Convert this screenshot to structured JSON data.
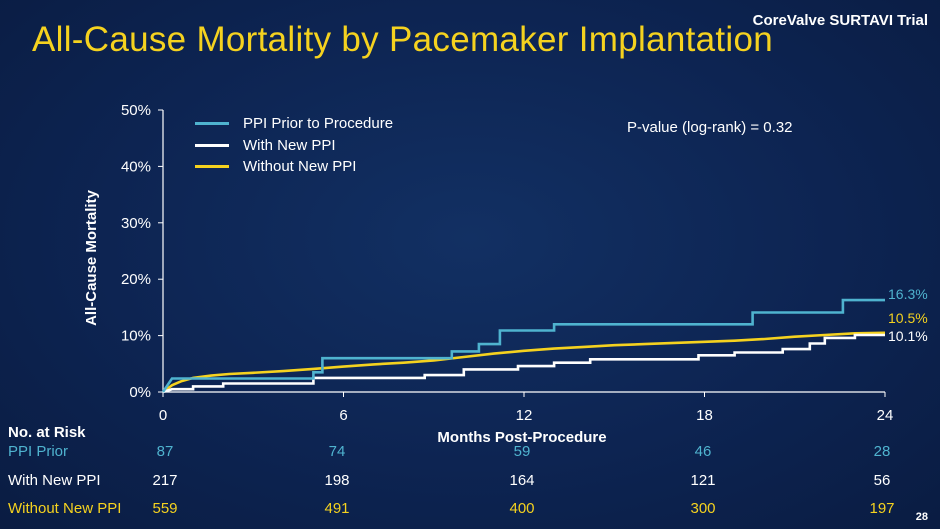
{
  "header": {
    "trial": "CoreValve SURTAVI Trial",
    "title": "All-Cause Mortality by Pacemaker Implantation",
    "page_number": "28"
  },
  "annotation": {
    "pvalue": "P-value (log-rank) = 0.32"
  },
  "colors": {
    "prior": "#4fb3cf",
    "new": "#ffffff",
    "without": "#f5d21f",
    "title": "#f5d21f"
  },
  "chart_data": {
    "type": "line",
    "title": "All-Cause Mortality by Pacemaker Implantation",
    "xlabel": "Months Post-Procedure",
    "ylabel": "All-Cause Mortality",
    "xlim": [
      0,
      24
    ],
    "ylim": [
      0,
      50
    ],
    "x_ticks": [
      "0",
      "6",
      "12",
      "18",
      "24"
    ],
    "y_ticks": [
      "0%",
      "10%",
      "20%",
      "30%",
      "40%",
      "50%"
    ],
    "legend_position": "top-left",
    "series": [
      {
        "name": "PPI Prior to Procedure",
        "key": "prior",
        "end_label": "16.3%",
        "points": [
          [
            0,
            0
          ],
          [
            0.15,
            1.2
          ],
          [
            0.3,
            2.4
          ],
          [
            5,
            2.4
          ],
          [
            5,
            3.5
          ],
          [
            5.3,
            3.5
          ],
          [
            5.3,
            6.0
          ],
          [
            9.6,
            6.0
          ],
          [
            9.6,
            7.2
          ],
          [
            10.5,
            7.2
          ],
          [
            10.5,
            8.5
          ],
          [
            11.2,
            8.5
          ],
          [
            11.2,
            10.9
          ],
          [
            13,
            10.9
          ],
          [
            13,
            12.0
          ],
          [
            19.6,
            12.0
          ],
          [
            19.6,
            14.1
          ],
          [
            22.6,
            14.1
          ],
          [
            22.6,
            16.3
          ],
          [
            24,
            16.3
          ]
        ]
      },
      {
        "name": "With New PPI",
        "key": "new",
        "end_label": "10.1%",
        "points": [
          [
            0,
            0
          ],
          [
            0.3,
            0.5
          ],
          [
            1,
            0.5
          ],
          [
            1,
            1.0
          ],
          [
            2,
            1.0
          ],
          [
            2,
            1.5
          ],
          [
            5,
            1.5
          ],
          [
            5,
            2.5
          ],
          [
            8.7,
            2.5
          ],
          [
            8.7,
            3.0
          ],
          [
            10,
            3.0
          ],
          [
            10,
            4.0
          ],
          [
            11.8,
            4.0
          ],
          [
            11.8,
            4.6
          ],
          [
            13,
            4.6
          ],
          [
            13,
            5.2
          ],
          [
            14.2,
            5.2
          ],
          [
            14.2,
            5.8
          ],
          [
            17.8,
            5.8
          ],
          [
            17.8,
            6.5
          ],
          [
            19,
            6.5
          ],
          [
            19,
            7.0
          ],
          [
            20.6,
            7.0
          ],
          [
            20.6,
            7.6
          ],
          [
            21.5,
            7.6
          ],
          [
            21.5,
            8.6
          ],
          [
            22,
            8.6
          ],
          [
            22,
            9.6
          ],
          [
            23,
            9.6
          ],
          [
            23,
            10.1
          ],
          [
            24,
            10.1
          ]
        ]
      },
      {
        "name": "Without New PPI",
        "key": "without",
        "end_label": "10.5%",
        "points": [
          [
            0,
            0
          ],
          [
            0.3,
            1.2
          ],
          [
            0.6,
            1.9
          ],
          [
            1,
            2.5
          ],
          [
            1.6,
            2.9
          ],
          [
            2.2,
            3.2
          ],
          [
            3,
            3.4
          ],
          [
            4,
            3.7
          ],
          [
            5,
            4.1
          ],
          [
            6,
            4.5
          ],
          [
            7,
            4.9
          ],
          [
            8,
            5.2
          ],
          [
            9,
            5.6
          ],
          [
            10,
            6.2
          ],
          [
            11,
            6.8
          ],
          [
            12,
            7.3
          ],
          [
            13,
            7.7
          ],
          [
            14,
            8.0
          ],
          [
            15,
            8.3
          ],
          [
            16,
            8.5
          ],
          [
            17,
            8.7
          ],
          [
            18,
            8.9
          ],
          [
            19,
            9.1
          ],
          [
            20,
            9.4
          ],
          [
            21,
            9.8
          ],
          [
            22,
            10.1
          ],
          [
            23,
            10.4
          ],
          [
            24,
            10.5
          ]
        ]
      }
    ]
  },
  "risk_table": {
    "title": "No. at Risk",
    "rows": [
      {
        "label": "PPI Prior",
        "key": "prior",
        "values": [
          "87",
          "74",
          "59",
          "46",
          "28"
        ]
      },
      {
        "label": "With New PPI",
        "key": "new",
        "values": [
          "217",
          "198",
          "164",
          "121",
          "56"
        ]
      },
      {
        "label": "Without New PPI",
        "key": "without",
        "values": [
          "559",
          "491",
          "400",
          "300",
          "197"
        ]
      }
    ]
  }
}
